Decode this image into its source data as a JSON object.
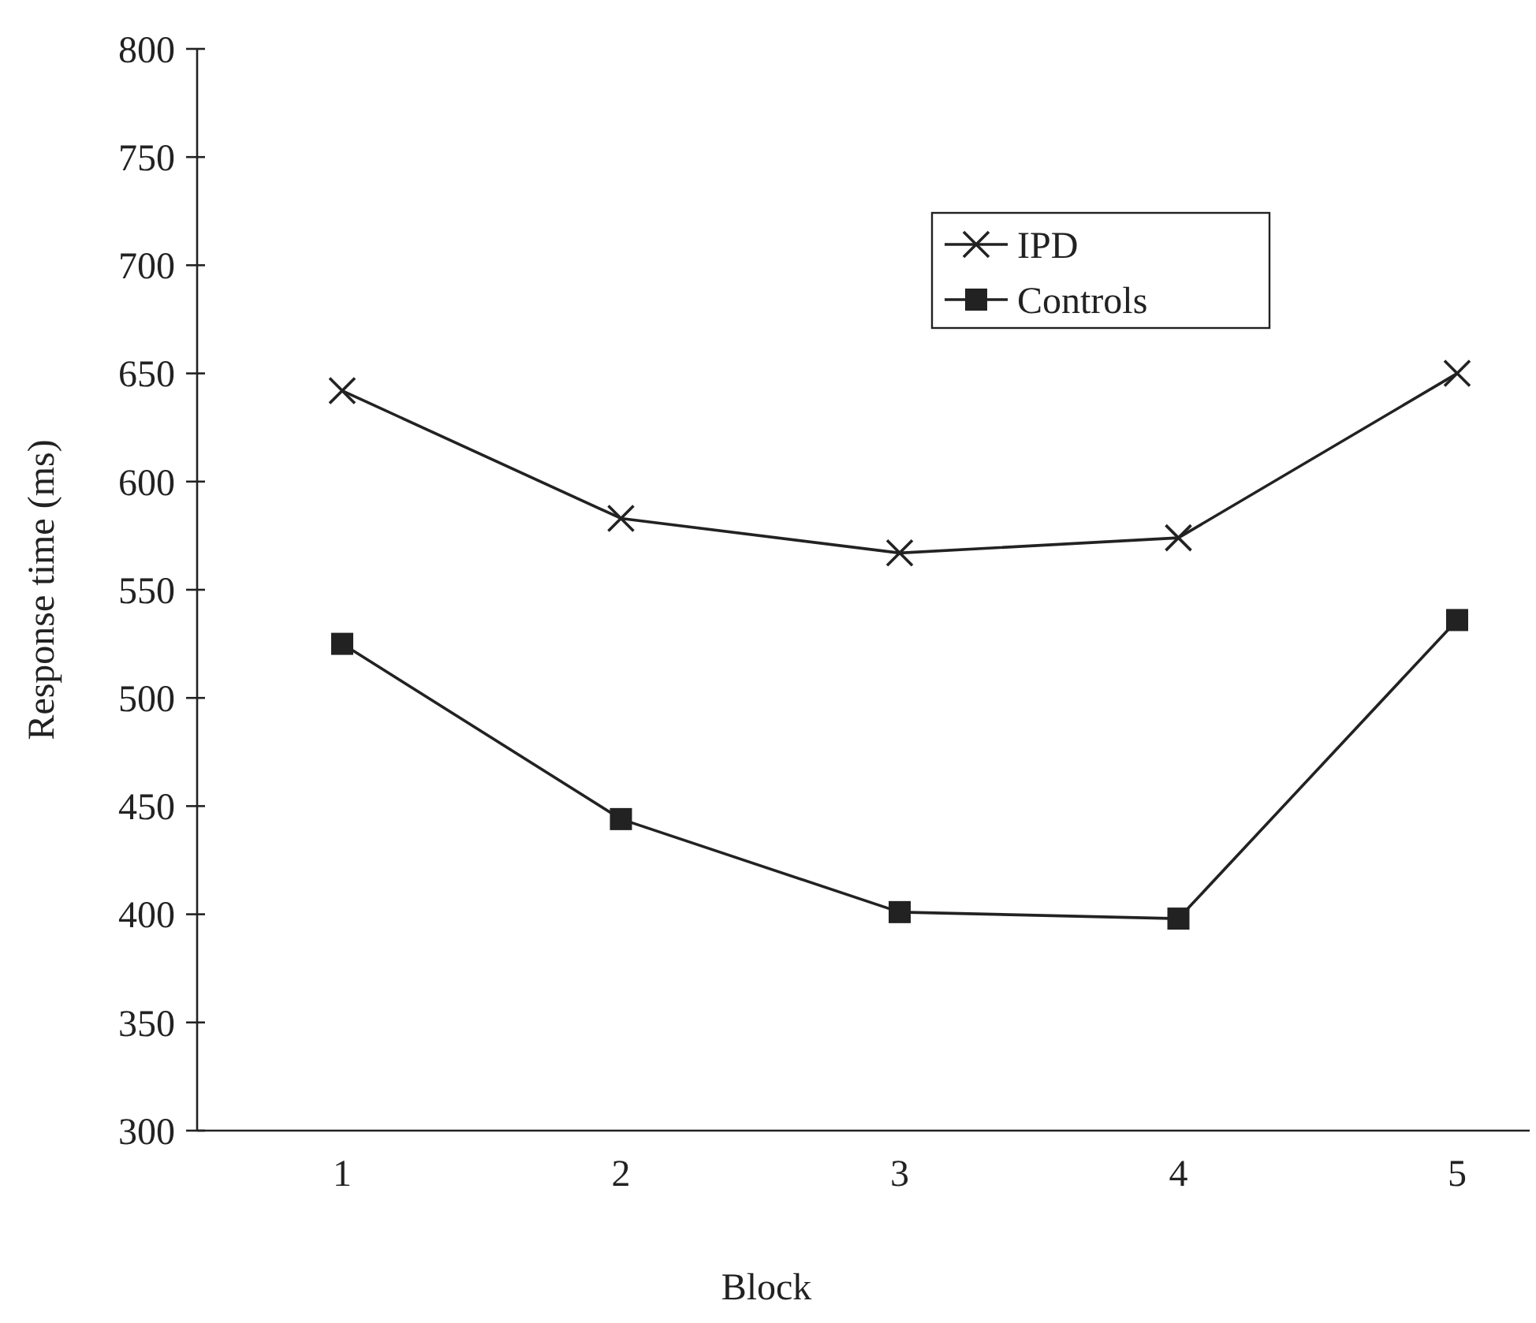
{
  "chart_data": {
    "type": "line",
    "xlabel": "Block",
    "ylabel": "Response time (ms)",
    "categories": [
      "1",
      "2",
      "3",
      "4",
      "5"
    ],
    "series": [
      {
        "name": "IPD",
        "color": "#222222",
        "marker": "cross",
        "values": [
          642,
          583,
          567,
          574,
          650
        ]
      },
      {
        "name": "Controls",
        "color": "#222222",
        "marker": "square",
        "values": [
          525,
          444,
          401,
          398,
          536
        ]
      }
    ],
    "ylim": [
      300,
      800
    ],
    "yticks": [
      300,
      350,
      400,
      450,
      500,
      550,
      600,
      650,
      700,
      750,
      800
    ],
    "grid": false,
    "legend": "top right"
  }
}
